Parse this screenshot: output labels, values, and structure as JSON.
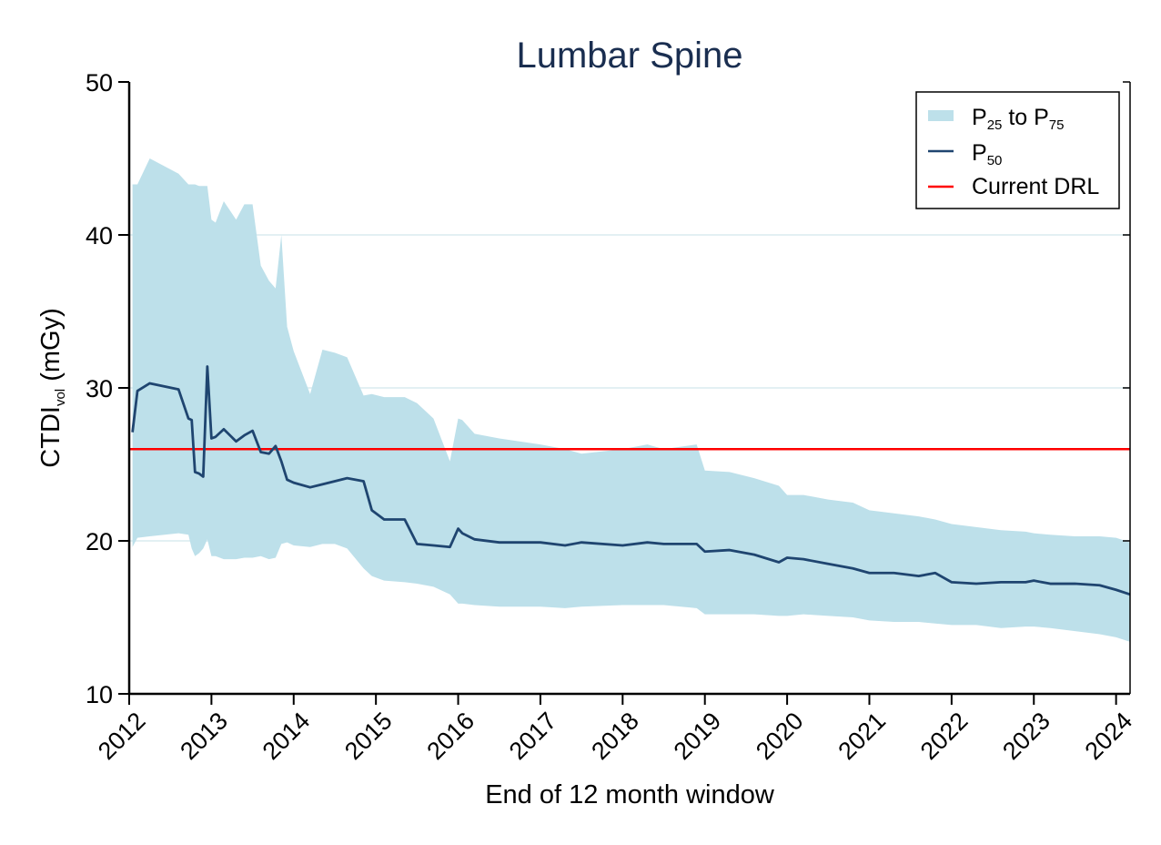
{
  "chart_data": {
    "type": "area",
    "title": "Lumbar Spine",
    "xlabel": "End of 12 month window",
    "ylabel": {
      "main": "CTDI",
      "sub": "vol",
      "unit": " (mGy)"
    },
    "xlim": [
      2012.0,
      2024.17
    ],
    "ylim": [
      10,
      50
    ],
    "yticks": [
      10,
      20,
      30,
      40,
      50
    ],
    "ytick_labels": [
      "10",
      "20",
      "30",
      "40",
      "50"
    ],
    "xticks": [
      2012,
      2013,
      2014,
      2015,
      2016,
      2017,
      2018,
      2019,
      2020,
      2021,
      2022,
      2023,
      2024
    ],
    "xtick_labels": [
      "2012",
      "2013",
      "2014",
      "2015",
      "2016",
      "2017",
      "2018",
      "2019",
      "2020",
      "2021",
      "2022",
      "2023",
      "2024"
    ],
    "grid": "horizontal",
    "legend_position": "top-right",
    "legend": [
      {
        "key": "band",
        "parts": [
          [
            "P",
            ""
          ],
          [
            "25",
            "sub"
          ],
          [
            " to P",
            ""
          ],
          [
            "75",
            "sub"
          ]
        ]
      },
      {
        "key": "median",
        "parts": [
          [
            "P",
            ""
          ],
          [
            "50",
            "sub"
          ]
        ]
      },
      {
        "key": "drl",
        "parts": [
          [
            "Current DRL",
            ""
          ]
        ]
      }
    ],
    "colors": {
      "band": "#bde0ea",
      "median": "#1f4570",
      "drl": "#ff0000",
      "grid": "#e3f0f3",
      "title": "#1a2e50"
    },
    "drl": 26,
    "x": [
      2012.04,
      2012.1,
      2012.25,
      2012.6,
      2012.72,
      2012.76,
      2012.8,
      2012.85,
      2012.9,
      2012.95,
      2013.0,
      2013.05,
      2013.15,
      2013.3,
      2013.4,
      2013.5,
      2013.6,
      2013.7,
      2013.78,
      2013.85,
      2013.92,
      2014.0,
      2014.2,
      2014.35,
      2014.5,
      2014.65,
      2014.85,
      2014.95,
      2015.1,
      2015.35,
      2015.5,
      2015.7,
      2015.9,
      2016.0,
      2016.05,
      2016.2,
      2016.5,
      2017.0,
      2017.3,
      2017.5,
      2018.0,
      2018.3,
      2018.5,
      2018.9,
      2019.0,
      2019.3,
      2019.6,
      2019.9,
      2020.0,
      2020.2,
      2020.5,
      2020.8,
      2021.0,
      2021.3,
      2021.6,
      2021.8,
      2022.0,
      2022.3,
      2022.6,
      2022.9,
      2023.0,
      2023.2,
      2023.5,
      2023.8,
      2024.0,
      2024.17
    ],
    "series": [
      {
        "name": "P50",
        "values": [
          27.1,
          29.8,
          30.3,
          29.9,
          28.0,
          27.9,
          24.5,
          24.4,
          24.2,
          31.4,
          26.7,
          26.8,
          27.3,
          26.5,
          26.9,
          27.2,
          25.8,
          25.7,
          26.2,
          25.2,
          24.0,
          23.8,
          23.5,
          23.7,
          23.9,
          24.1,
          23.9,
          22.0,
          21.4,
          21.4,
          19.8,
          19.7,
          19.6,
          20.8,
          20.5,
          20.1,
          19.9,
          19.9,
          19.7,
          19.9,
          19.7,
          19.9,
          19.8,
          19.8,
          19.3,
          19.4,
          19.1,
          18.6,
          18.9,
          18.8,
          18.5,
          18.2,
          17.9,
          17.9,
          17.7,
          17.9,
          17.3,
          17.2,
          17.3,
          17.3,
          17.4,
          17.2,
          17.2,
          17.1,
          16.8,
          16.5
        ]
      },
      {
        "name": "P25",
        "values": [
          19.6,
          20.2,
          20.3,
          20.5,
          20.4,
          19.5,
          19.0,
          19.2,
          19.5,
          20.1,
          19.0,
          19.0,
          18.8,
          18.8,
          18.9,
          18.9,
          19.0,
          18.8,
          18.9,
          19.8,
          19.9,
          19.7,
          19.6,
          19.8,
          19.8,
          19.5,
          18.2,
          17.7,
          17.4,
          17.3,
          17.2,
          17.0,
          16.5,
          15.9,
          15.9,
          15.8,
          15.7,
          15.7,
          15.6,
          15.7,
          15.8,
          15.8,
          15.8,
          15.6,
          15.2,
          15.2,
          15.2,
          15.1,
          15.1,
          15.2,
          15.1,
          15.0,
          14.8,
          14.7,
          14.7,
          14.6,
          14.5,
          14.5,
          14.3,
          14.4,
          14.4,
          14.3,
          14.1,
          13.9,
          13.7,
          13.4
        ]
      },
      {
        "name": "P75",
        "values": [
          43.3,
          43.3,
          45.0,
          44.0,
          43.3,
          43.3,
          43.3,
          43.2,
          43.2,
          43.2,
          41.0,
          40.8,
          42.2,
          41.0,
          42.0,
          42.0,
          38.0,
          37.0,
          36.5,
          40.0,
          34.0,
          32.4,
          29.6,
          32.5,
          32.3,
          32.0,
          29.5,
          29.6,
          29.4,
          29.4,
          29.0,
          28.0,
          25.2,
          28.0,
          27.9,
          27.0,
          26.7,
          26.3,
          26.0,
          25.7,
          26.0,
          26.3,
          26.0,
          26.3,
          24.6,
          24.5,
          24.1,
          23.6,
          23.0,
          23.0,
          22.7,
          22.5,
          22.0,
          21.8,
          21.6,
          21.4,
          21.1,
          20.9,
          20.7,
          20.6,
          20.5,
          20.4,
          20.3,
          20.3,
          20.2,
          19.9
        ]
      }
    ]
  }
}
